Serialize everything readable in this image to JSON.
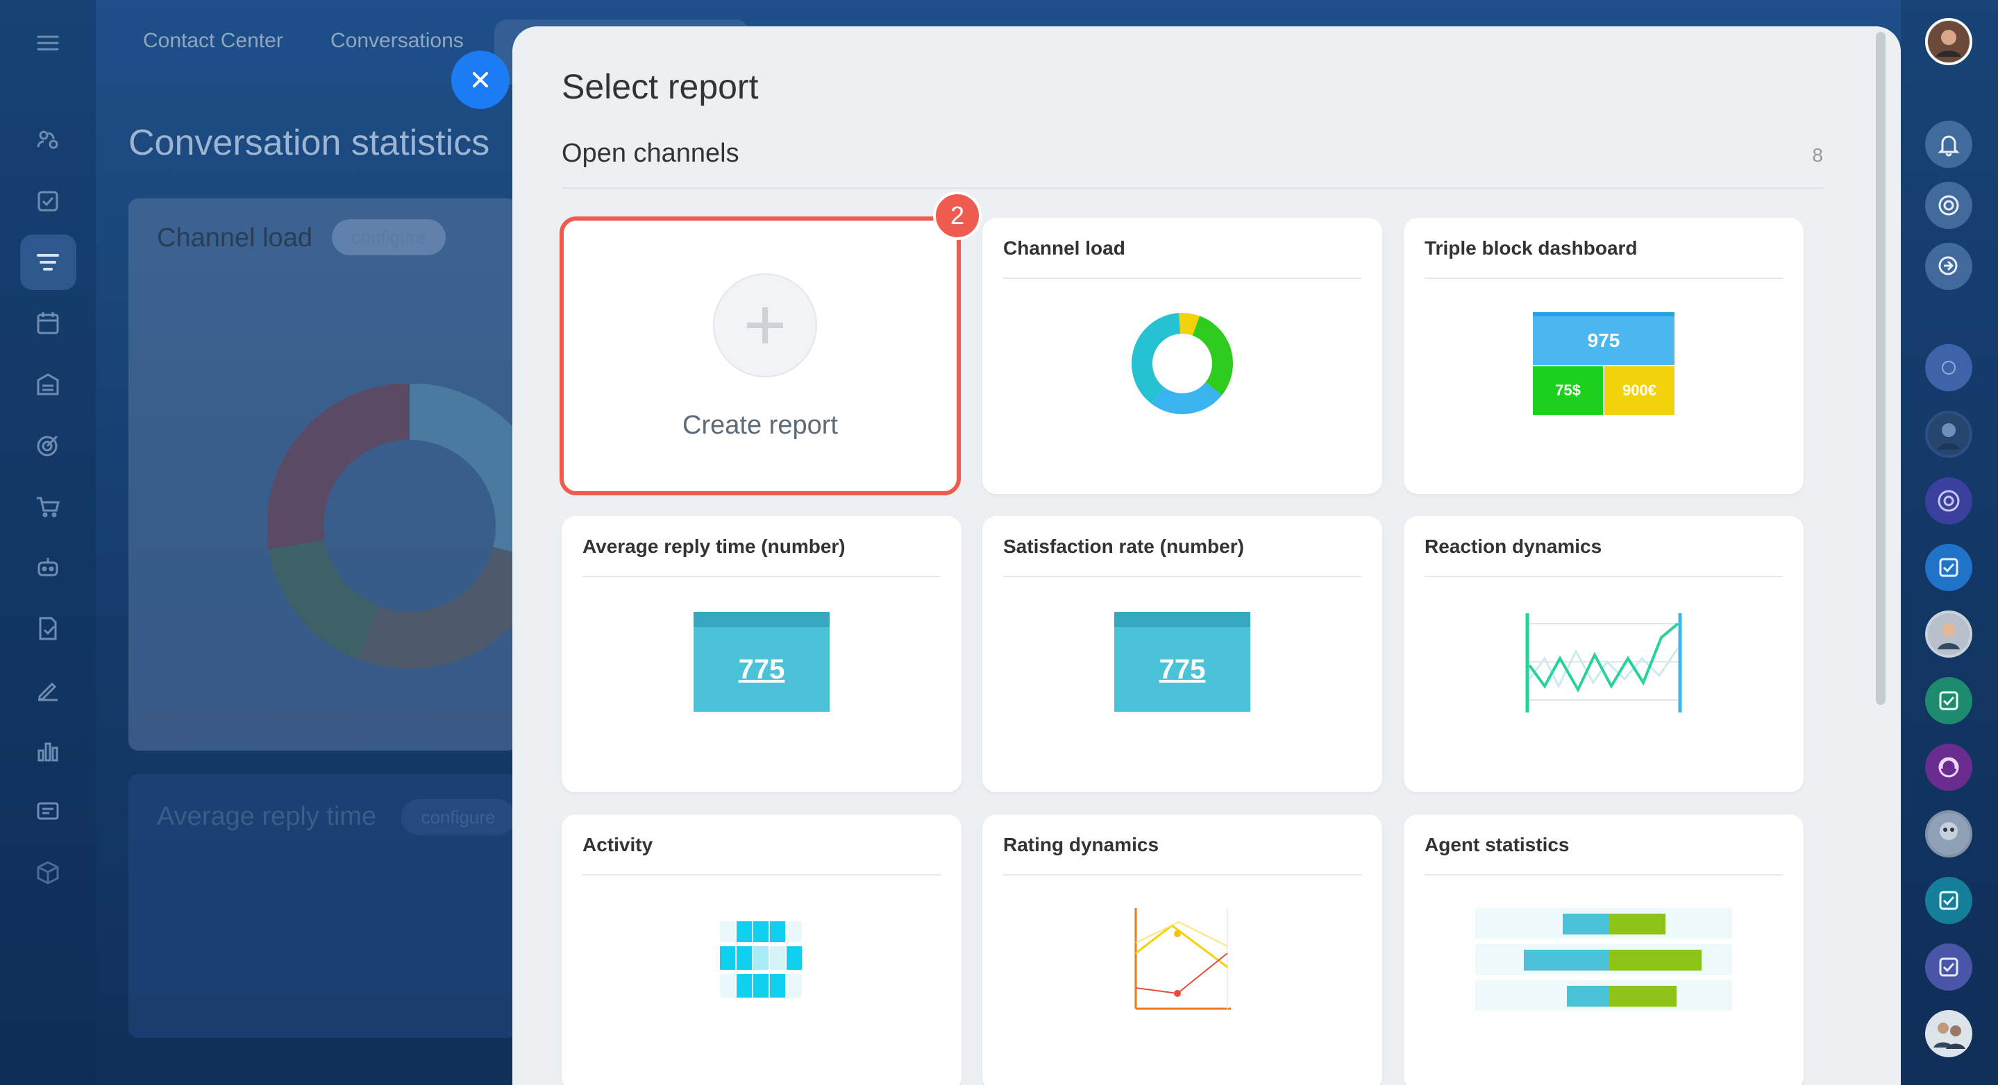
{
  "topnav": {
    "tabs": [
      "Contact Center",
      "Conversations"
    ]
  },
  "background_page": {
    "title": "Conversation statistics",
    "widgets": [
      {
        "title": "Channel load",
        "badge": "configure"
      },
      {
        "title": "Average reply time",
        "badge": "configure"
      }
    ]
  },
  "dialog": {
    "title": "Select report",
    "section": {
      "title": "Open channels",
      "count": "8"
    },
    "create": {
      "label": "Create report",
      "step": "2"
    },
    "reports": [
      {
        "title": "Channel load",
        "preview": "donut"
      },
      {
        "title": "Triple block dashboard",
        "preview": "triple",
        "values": [
          "975",
          "75$",
          "900€"
        ]
      },
      {
        "title": "Average reply time (number)",
        "preview": "number",
        "value": "775"
      },
      {
        "title": "Satisfaction rate (number)",
        "preview": "number",
        "value": "775"
      },
      {
        "title": "Reaction dynamics",
        "preview": "linechart"
      },
      {
        "title": "Activity",
        "preview": "heatmap"
      },
      {
        "title": "Rating dynamics",
        "preview": "ratinglines"
      },
      {
        "title": "Agent statistics",
        "preview": "bars"
      }
    ]
  },
  "colors": {
    "accent": "#1c7cf3",
    "highlight": "#ef5b4e",
    "tile_cyan": "#4ac3d9",
    "green": "#2ecc1f",
    "yellow": "#f2d20a"
  }
}
